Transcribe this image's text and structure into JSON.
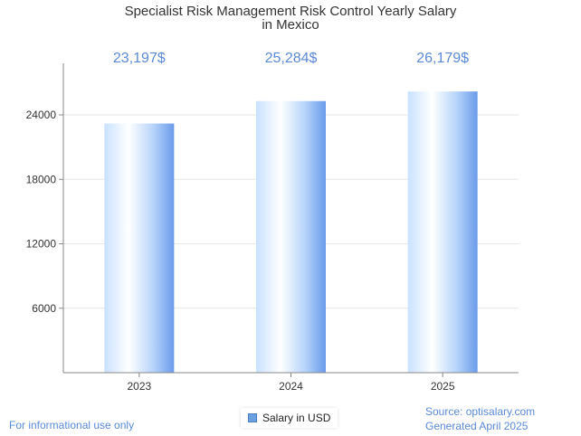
{
  "chart_data": {
    "type": "bar",
    "title_lines": [
      "Specialist Risk Management Risk Control Yearly Salary",
      "in Mexico"
    ],
    "categories": [
      "2023",
      "2024",
      "2025"
    ],
    "series": [
      {
        "name": "Salary in USD",
        "values": [
          23197,
          25284,
          26179
        ]
      }
    ],
    "data_labels": [
      "23,197$",
      "25,284$",
      "26,179$"
    ],
    "y_ticks": [
      6000,
      12000,
      18000,
      24000
    ],
    "y_tick_labels": [
      "6000",
      "12000",
      "18000",
      "24000"
    ],
    "ylim": [
      0,
      28800
    ],
    "xlabel": "",
    "ylabel": "",
    "grid": true,
    "legend_position": "bottom-center",
    "colors": {
      "bar_light": "#ffffff",
      "bar_mid": "#c9e2ff",
      "bar_dark": "#6a9bea",
      "data_label": "#5b8ad6",
      "grid": "#e6e6e6",
      "axis": "#888888"
    }
  },
  "legend": {
    "label": "Salary in USD"
  },
  "footer": {
    "disclaimer": "For informational use only",
    "source": "Source: optisalary.com",
    "generated": "Generated April 2025"
  }
}
